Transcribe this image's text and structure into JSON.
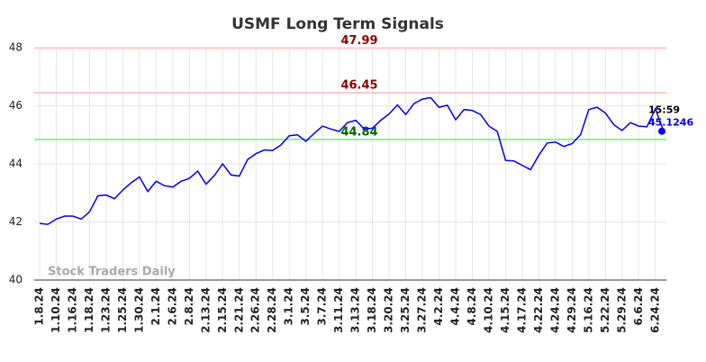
{
  "chart_data": {
    "type": "line",
    "title": "USMF Long Term Signals",
    "categories": [
      "1.8.24",
      null,
      "1.10.24",
      null,
      "1.16.24",
      null,
      "1.18.24",
      null,
      "1.23.24",
      null,
      "1.25.24",
      null,
      "1.30.24",
      null,
      "2.1.24",
      null,
      "2.6.24",
      null,
      "2.8.24",
      null,
      "2.13.24",
      null,
      "2.15.24",
      null,
      "2.21.24",
      null,
      "2.26.24",
      null,
      "2.28.24",
      null,
      "3.1.24",
      null,
      "3.5.24",
      null,
      "3.7.24",
      null,
      "3.11.24",
      null,
      "3.13.24",
      null,
      "3.18.24",
      null,
      "3.20.24",
      null,
      "3.25.24",
      null,
      "3.27.24",
      null,
      "4.2.24",
      null,
      "4.4.24",
      null,
      "4.8.24",
      null,
      "4.10.24",
      null,
      "4.15.24",
      null,
      "4.17.24",
      null,
      "4.22.24",
      null,
      "4.24.24",
      null,
      "4.29.24",
      null,
      "5.16.24",
      null,
      "5.22.24",
      null,
      "5.29.24",
      null,
      "6.6.24",
      null,
      "6.24.24",
      null
    ],
    "series": [
      {
        "color": "#0000ee",
        "values": [
          41.95,
          41.92,
          42.1,
          42.2,
          42.2,
          42.1,
          42.35,
          42.9,
          42.93,
          42.8,
          43.1,
          43.35,
          43.55,
          43.05,
          43.4,
          43.25,
          43.2,
          43.4,
          43.5,
          43.75,
          43.3,
          43.6,
          44.0,
          43.62,
          43.58,
          44.15,
          44.35,
          44.48,
          44.46,
          44.65,
          44.97,
          45.0,
          44.78,
          45.05,
          45.3,
          45.2,
          45.12,
          45.42,
          45.5,
          45.2,
          45.23,
          45.5,
          45.72,
          46.03,
          45.7,
          46.08,
          46.23,
          46.28,
          45.95,
          46.02,
          45.52,
          45.87,
          45.84,
          45.7,
          45.3,
          45.12,
          44.12,
          44.1,
          43.95,
          43.8,
          44.3,
          44.72,
          44.75,
          44.6,
          44.7,
          45.0,
          45.87,
          45.95,
          45.75,
          45.35,
          45.15,
          45.42,
          45.3,
          45.28,
          45.9,
          45.1246
        ]
      }
    ],
    "hlines": [
      {
        "value": 47.99,
        "color": "#ffc8c8",
        "label_color": "#8b0000"
      },
      {
        "value": 46.45,
        "color": "#ffc8c8",
        "label_color": "#8b0000"
      },
      {
        "value": 44.84,
        "color": "#90ee90",
        "label_color": "#006400"
      }
    ],
    "last_point": {
      "time": "15:59",
      "value": 45.1246
    },
    "watermark": "Stock Traders Daily",
    "ylim": [
      40,
      48
    ],
    "yticks": [
      40,
      42,
      44,
      46,
      48
    ],
    "grid": true
  }
}
